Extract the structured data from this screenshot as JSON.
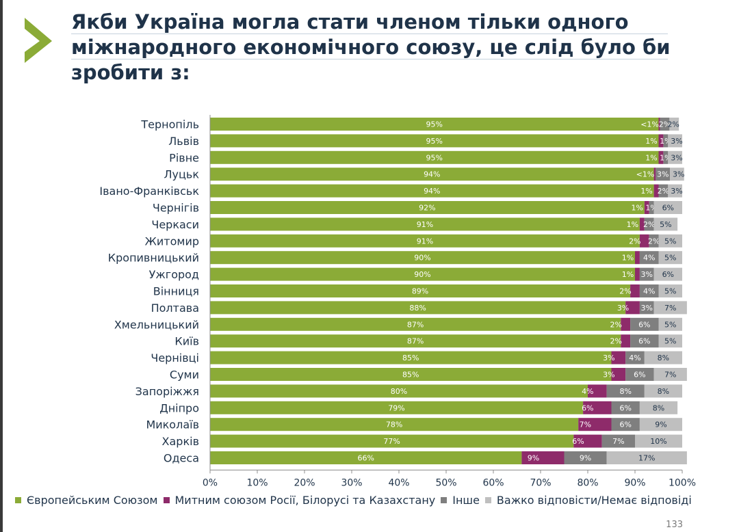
{
  "slide": {
    "title_lines": [
      "Якби Україна могла стати членом тільки одного",
      "міжнародного економічного союзу, це слід було би",
      "зробити з:"
    ],
    "page_number": "133",
    "accent_color": "#8bab37",
    "title_color": "#1f3349"
  },
  "chart_data": {
    "type": "bar",
    "orientation": "horizontal",
    "stacked": true,
    "title": "Якби Україна могла стати членом тільки одного міжнародного економічного союзу, це слід було би зробити з:",
    "xlabel": "",
    "ylabel": "",
    "xlim": [
      0,
      100
    ],
    "x_ticks": [
      "0%",
      "10%",
      "20%",
      "30%",
      "40%",
      "50%",
      "60%",
      "70%",
      "80%",
      "90%",
      "100%"
    ],
    "grid": false,
    "legend_position": "bottom",
    "categories": [
      "Тернопіль",
      "Львів",
      "Рівне",
      "Луцьк",
      "Івано-Франківськ",
      "Чернігів",
      "Черкаси",
      "Житомир",
      "Кропивницький",
      "Ужгород",
      "Вінниця",
      "Полтава",
      "Хмельницький",
      "Київ",
      "Чернівці",
      "Суми",
      "Запоріжжя",
      "Дніпро",
      "Миколаїв",
      "Харків",
      "Одеса"
    ],
    "series": [
      {
        "name": "Європейським Союзом",
        "color": "#8bab37",
        "values": [
          95,
          95,
          95,
          94,
          94,
          92,
          91,
          91,
          90,
          90,
          89,
          88,
          87,
          87,
          85,
          85,
          80,
          79,
          78,
          77,
          66
        ],
        "labels": [
          "95%",
          "95%",
          "95%",
          "94%",
          "94%",
          "92%",
          "91%",
          "91%",
          "90%",
          "90%",
          "89%",
          "88%",
          "87%",
          "87%",
          "85%",
          "85%",
          "80%",
          "79%",
          "78%",
          "77%",
          "66%"
        ]
      },
      {
        "name": "Митним союзом Росії, Білорусі та Казахстану",
        "color": "#8e2b6a",
        "values": [
          0.3,
          1,
          1,
          0.4,
          1,
          1,
          1,
          2,
          1,
          1,
          2,
          3,
          2,
          2,
          3,
          3,
          4,
          6,
          7,
          6,
          9
        ],
        "labels": [
          "<1%",
          "1%",
          "1%",
          "<1%",
          "1%",
          "1%",
          "1%",
          "2%",
          "1%",
          "1%",
          "2%",
          "3%",
          "2%",
          "2%",
          "3%",
          "3%",
          "4%",
          "6%",
          "7%",
          "6%",
          "9%"
        ]
      },
      {
        "name": "Інше",
        "color": "#7f7f7f",
        "values": [
          2,
          1,
          1,
          3,
          2,
          1,
          2,
          2,
          4,
          3,
          4,
          3,
          6,
          6,
          4,
          6,
          8,
          6,
          6,
          7,
          9
        ],
        "labels": [
          "2%",
          "1%",
          "1%",
          "3%",
          "2%",
          "1%",
          "2%",
          "2%",
          "4%",
          "3%",
          "4%",
          "3%",
          "6%",
          "6%",
          "4%",
          "6%",
          "8%",
          "6%",
          "6%",
          "7%",
          "9%"
        ]
      },
      {
        "name": "Важко відповісти/Немає відповіді",
        "color": "#bfbfbf",
        "values": [
          2,
          3,
          3,
          3,
          3,
          6,
          5,
          5,
          5,
          6,
          5,
          7,
          5,
          5,
          8,
          7,
          8,
          8,
          9,
          10,
          17
        ],
        "labels": [
          "2%",
          "3%",
          "3%",
          "3%",
          "3%",
          "6%",
          "5%",
          "5%",
          "5%",
          "6%",
          "5%",
          "7%",
          "5%",
          "5%",
          "8%",
          "7%",
          "8%",
          "8%",
          "9%",
          "10%",
          "17%"
        ]
      }
    ]
  }
}
